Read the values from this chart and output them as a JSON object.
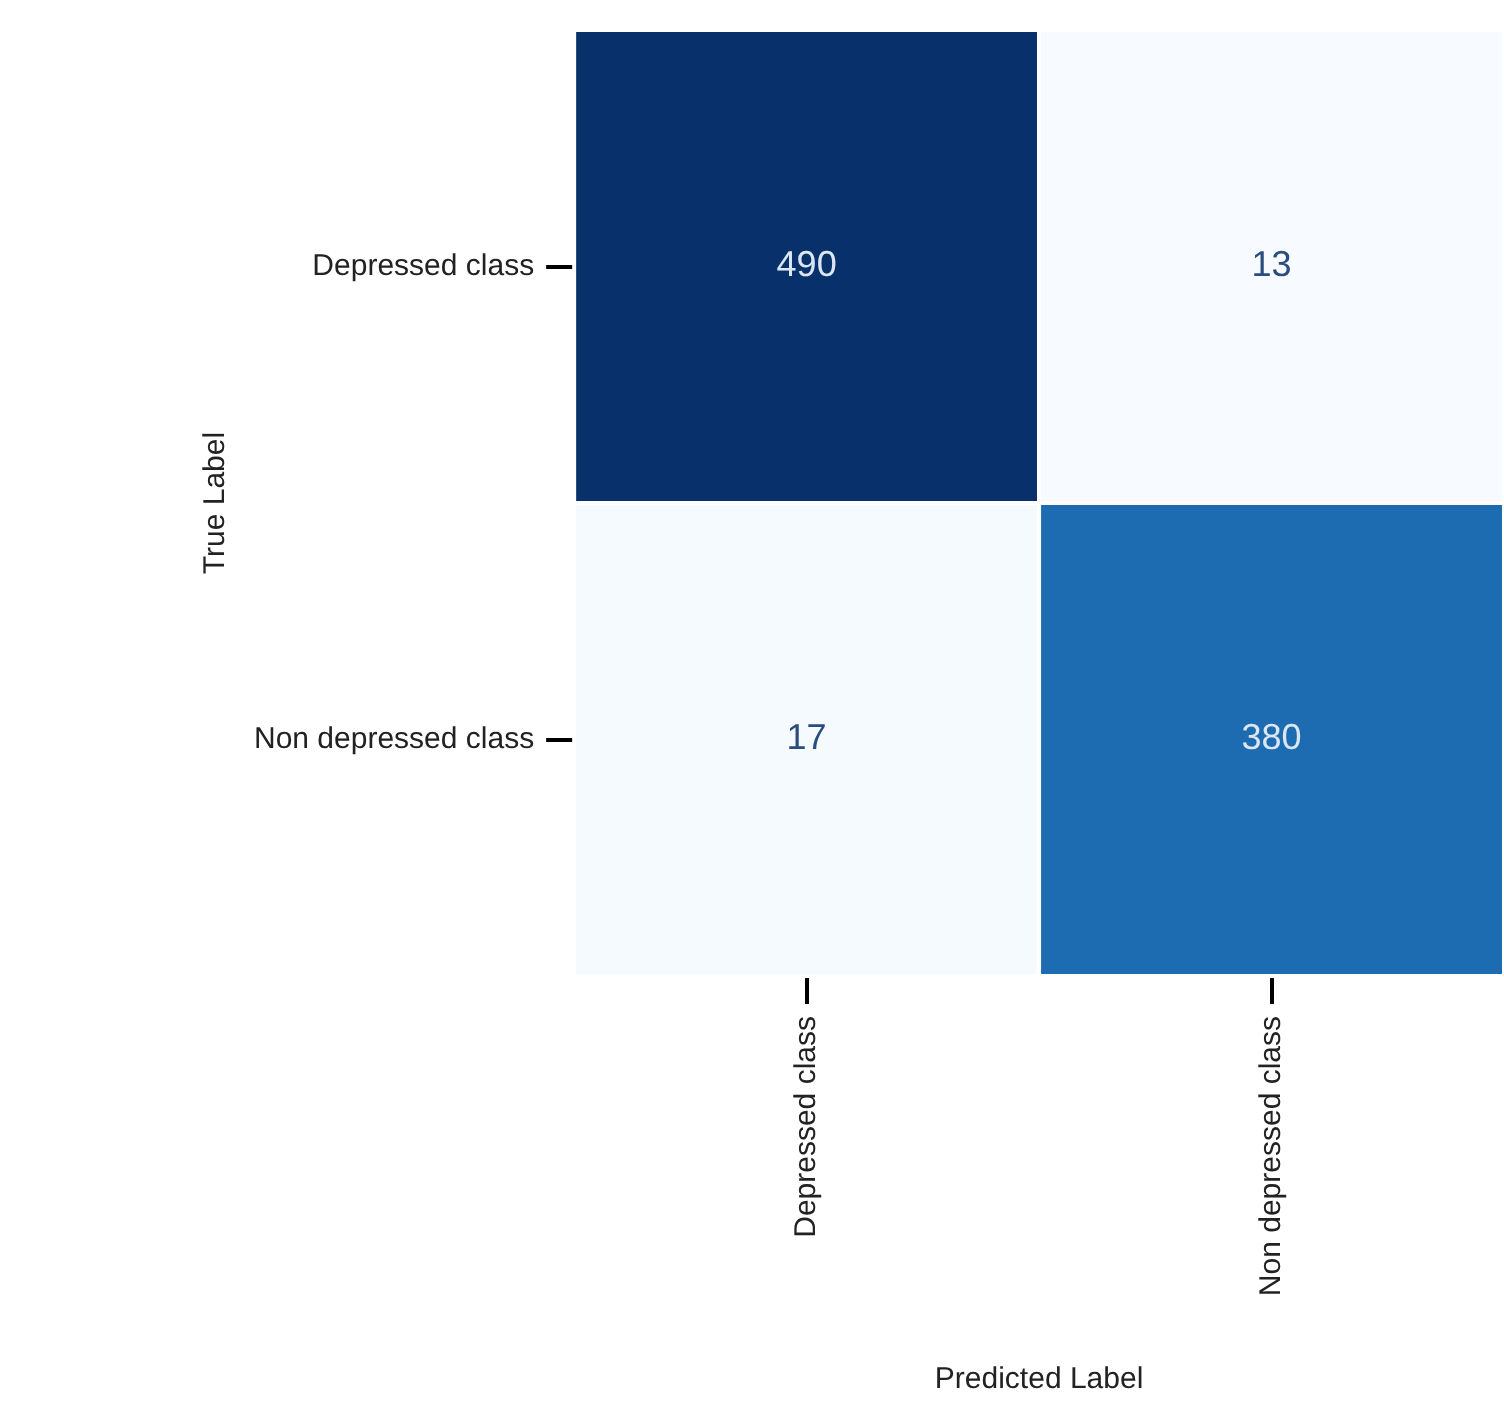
{
  "chart_data": {
    "type": "heatmap",
    "xlabel": "Predicted Label",
    "ylabel": "True Label",
    "categories": [
      "Depressed class",
      "Non depressed class"
    ],
    "y_categories": [
      "Depressed class",
      "Non depressed class"
    ],
    "cells": [
      [
        490,
        13
      ],
      [
        17,
        380
      ]
    ],
    "data_labels": true
  }
}
